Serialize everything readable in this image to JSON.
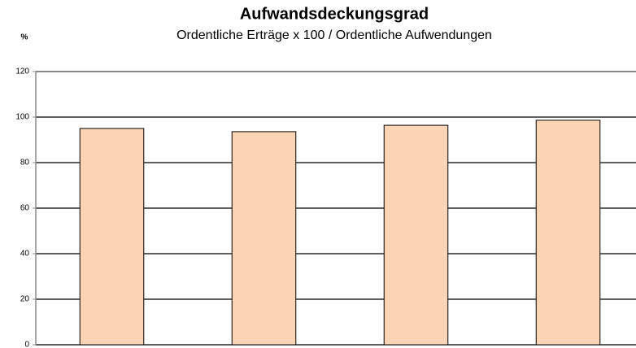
{
  "chart_data": {
    "type": "bar",
    "title": "Aufwandsdeckungsgrad",
    "subtitle": "Ordentliche Erträge x 100 / Ordentliche Aufwendungen",
    "y_label": "%",
    "categories": [
      null,
      null,
      null,
      null
    ],
    "values": [
      95,
      93.6,
      96.4,
      98.6
    ],
    "color": "#fad4b4",
    "ylim": [
      0,
      120
    ],
    "yticks": [
      0,
      20,
      40,
      60,
      80,
      100,
      120
    ],
    "grid": true
  }
}
